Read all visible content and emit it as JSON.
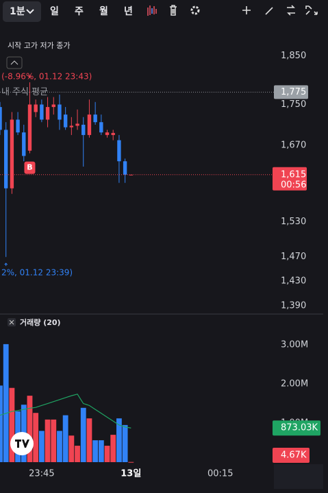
{
  "toolbar": {
    "interval": "1분",
    "periods": [
      "일",
      "주",
      "월",
      "년"
    ]
  },
  "chart_data": {
    "type": "candlestick",
    "legend": "시작 고가 저가 종가",
    "log_scale": true,
    "up_color": "#f04452",
    "down_color": "#3182f6",
    "x": [
      "23:38",
      "23:39",
      "23:40",
      "23:41",
      "23:42",
      "23:43",
      "23:44",
      "23:45",
      "23:46",
      "23:47",
      "23:48",
      "23:49",
      "23:50",
      "23:51",
      "23:52",
      "23:53",
      "23:54",
      "23:55",
      "23:56",
      "23:57",
      "23:58",
      "23:59",
      "00:00"
    ],
    "open": [
      1745,
      1700,
      1590,
      1720,
      1695,
      1660,
      1735,
      1750,
      1720,
      1745,
      1750,
      1730,
      1705,
      1708,
      1710,
      1690,
      1730,
      1715,
      1690,
      1690,
      1680,
      1640,
      1615
    ],
    "high": [
      1755,
      1715,
      1735,
      1735,
      1710,
      1795,
      1760,
      1760,
      1765,
      1765,
      1770,
      1745,
      1725,
      1740,
      1725,
      1760,
      1755,
      1730,
      1700,
      1700,
      1690,
      1645,
      1615
    ],
    "low": [
      1690,
      1470,
      1580,
      1690,
      1640,
      1655,
      1725,
      1715,
      1705,
      1730,
      1700,
      1700,
      1690,
      1700,
      1630,
      1685,
      1710,
      1690,
      1685,
      1680,
      1600,
      1600,
      1615
    ],
    "close": [
      1700,
      1590,
      1720,
      1695,
      1650,
      1750,
      1750,
      1720,
      1745,
      1750,
      1720,
      1705,
      1708,
      1712,
      1690,
      1730,
      1715,
      1695,
      1695,
      1694,
      1640,
      1615,
      1615
    ],
    "xlim": [
      "23:38",
      "00:24"
    ],
    "xticks": [
      {
        "value": "23:45",
        "label": "23:45"
      },
      {
        "value": "00:00",
        "label": "13일"
      },
      {
        "value": "00:15",
        "label": "00:15"
      }
    ],
    "ylim": [
      1377,
      1889
    ],
    "yticks": [
      {
        "value": 1850,
        "label": "1,850"
      },
      {
        "value": 1750,
        "label": "1,750"
      },
      {
        "value": 1670,
        "label": "1,670"
      },
      {
        "value": 1530,
        "label": "1,530"
      },
      {
        "value": 1470,
        "label": "1,470"
      },
      {
        "value": 1430,
        "label": "1,430"
      },
      {
        "value": 1390,
        "label": "1,390"
      }
    ],
    "current_price": {
      "value": 1615,
      "label": "1,615"
    },
    "countdown": "00:56",
    "avg_price": {
      "name": "내 주식 평균",
      "value": 1775,
      "label": "1,775"
    },
    "high_note": {
      "x": "23:43",
      "text": "! (-8.96%, 01.12 23:43)"
    },
    "low_note": {
      "x": "23:39",
      "text": "2%, 01.12 23:39)"
    },
    "buy_marker": {
      "x": "23:43",
      "text": "B"
    },
    "volume": {
      "title": "거래량 (20)",
      "values": [
        1960000,
        3020000,
        1900000,
        1300000,
        1470000,
        1700000,
        1260000,
        800000,
        1090000,
        1090000,
        800000,
        1200000,
        680000,
        420000,
        1390000,
        1120000,
        560000,
        560000,
        420000,
        700000,
        1120000,
        950000,
        4670
      ],
      "ma": [
        1200000,
        1250000,
        1300000,
        1320000,
        1350000,
        1380000,
        1400000,
        1450000,
        1500000,
        1550000,
        1600000,
        1650000,
        1700000,
        1740000,
        1500000,
        1450000,
        1350000,
        1250000,
        1150000,
        1050000,
        950000,
        900000,
        873030
      ],
      "ma_color": "#1fa463",
      "ylim": [
        0,
        3720000
      ],
      "yticks": [
        {
          "value": 1000000,
          "label": "1.00M"
        },
        {
          "value": 2000000,
          "label": "2.00M"
        },
        {
          "value": 3000000,
          "label": "3.00M"
        }
      ],
      "ma_last": {
        "value": 873030,
        "label": "873.03K"
      },
      "last_volume": {
        "value": 4670,
        "label": "4.67K"
      }
    }
  }
}
